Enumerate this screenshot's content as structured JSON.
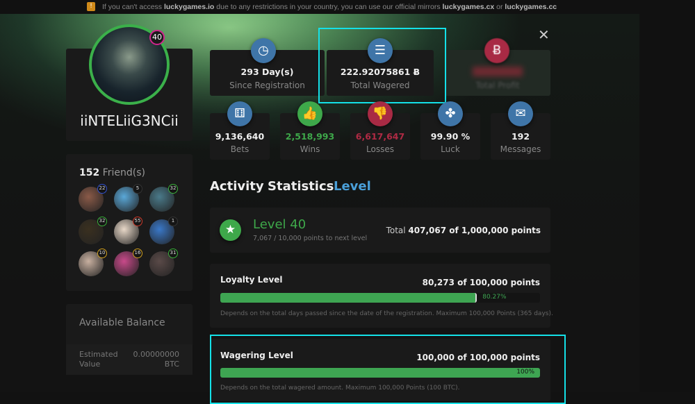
{
  "banner": {
    "pre": "If you can't access ",
    "site": "luckygames.io",
    "mid": " due to any restrictions in your country, you can use our official mirrors ",
    "mirror1": "luckygames.cx",
    "or": " or ",
    "mirror2": "luckygames.cc",
    "icon": "warning-icon"
  },
  "profile": {
    "username": "iiNTELiiG3NCii",
    "level_badge": "40"
  },
  "stats_top": [
    {
      "value": "293 Day(s)",
      "label": "Since Registration",
      "icon": "clock-icon"
    },
    {
      "value": "222.92075861 Ƀ",
      "label": "Total Wagered",
      "icon": "coins-icon"
    },
    {
      "value": "",
      "label": "Total Profit",
      "icon": "money-bag-icon"
    }
  ],
  "stats_bottom": [
    {
      "value": "9,136,640",
      "label": "Bets",
      "icon": "dice-icon",
      "color": "#f0f0f0"
    },
    {
      "value": "2,518,993",
      "label": "Wins",
      "icon": "thumbs-up-icon",
      "color": "#3ea84a"
    },
    {
      "value": "6,617,647",
      "label": "Losses",
      "icon": "thumbs-down-icon",
      "color": "#b02a44"
    },
    {
      "value": "99.90 %",
      "label": "Luck",
      "icon": "clover-icon",
      "color": "#f0f0f0"
    },
    {
      "value": "192",
      "label": "Messages",
      "icon": "chat-icon",
      "color": "#f0f0f0"
    }
  ],
  "friends": {
    "count": "152",
    "label": " Friend(s)",
    "items": [
      {
        "level": "22",
        "ring": "#3050d0"
      },
      {
        "level": "5",
        "ring": "#333"
      },
      {
        "level": "32",
        "ring": "#3ab03a"
      },
      {
        "level": "32",
        "ring": "#3ab03a"
      },
      {
        "level": "55",
        "ring": "#d03a2a"
      },
      {
        "level": "1",
        "ring": "#333"
      },
      {
        "level": "10",
        "ring": "#d0a020"
      },
      {
        "level": "16",
        "ring": "#d0a020"
      },
      {
        "level": "31",
        "ring": "#3ab03a"
      }
    ]
  },
  "balance": {
    "title": "Available Balance",
    "label1": "Estimated",
    "label2": "Value",
    "amount": "0.00000000",
    "currency": "BTC"
  },
  "tabs": [
    {
      "label": "Activity",
      "active": false
    },
    {
      "label": "Statistics",
      "active": false
    },
    {
      "label": "Level",
      "active": true
    }
  ],
  "level": {
    "title": "Level 40",
    "sub": "7,067 / 10,000 points to next level",
    "total_pre": "Total ",
    "total": "407,067 of 1,000,000 points",
    "icon": "star-icon"
  },
  "loyalty": {
    "title": "Loyalty Level",
    "points": "80,273 of 100,000 points",
    "percent": 80.27,
    "percent_label": "80.27%",
    "desc": "Depends on the total days passed since the date of the registration. Maximum 100,000 Points (365 days)."
  },
  "wagering": {
    "title": "Wagering Level",
    "points": "100,000 of 100,000 points",
    "percent": 100,
    "percent_label": "100%",
    "desc": "Depends on the total wagered amount. Maximum 100,000 Points (100 BTC)."
  },
  "close_icon": "close-icon",
  "colors": {
    "accent": "#4a9fd8",
    "green": "#3ea552",
    "highlight": "#14e1e8"
  }
}
